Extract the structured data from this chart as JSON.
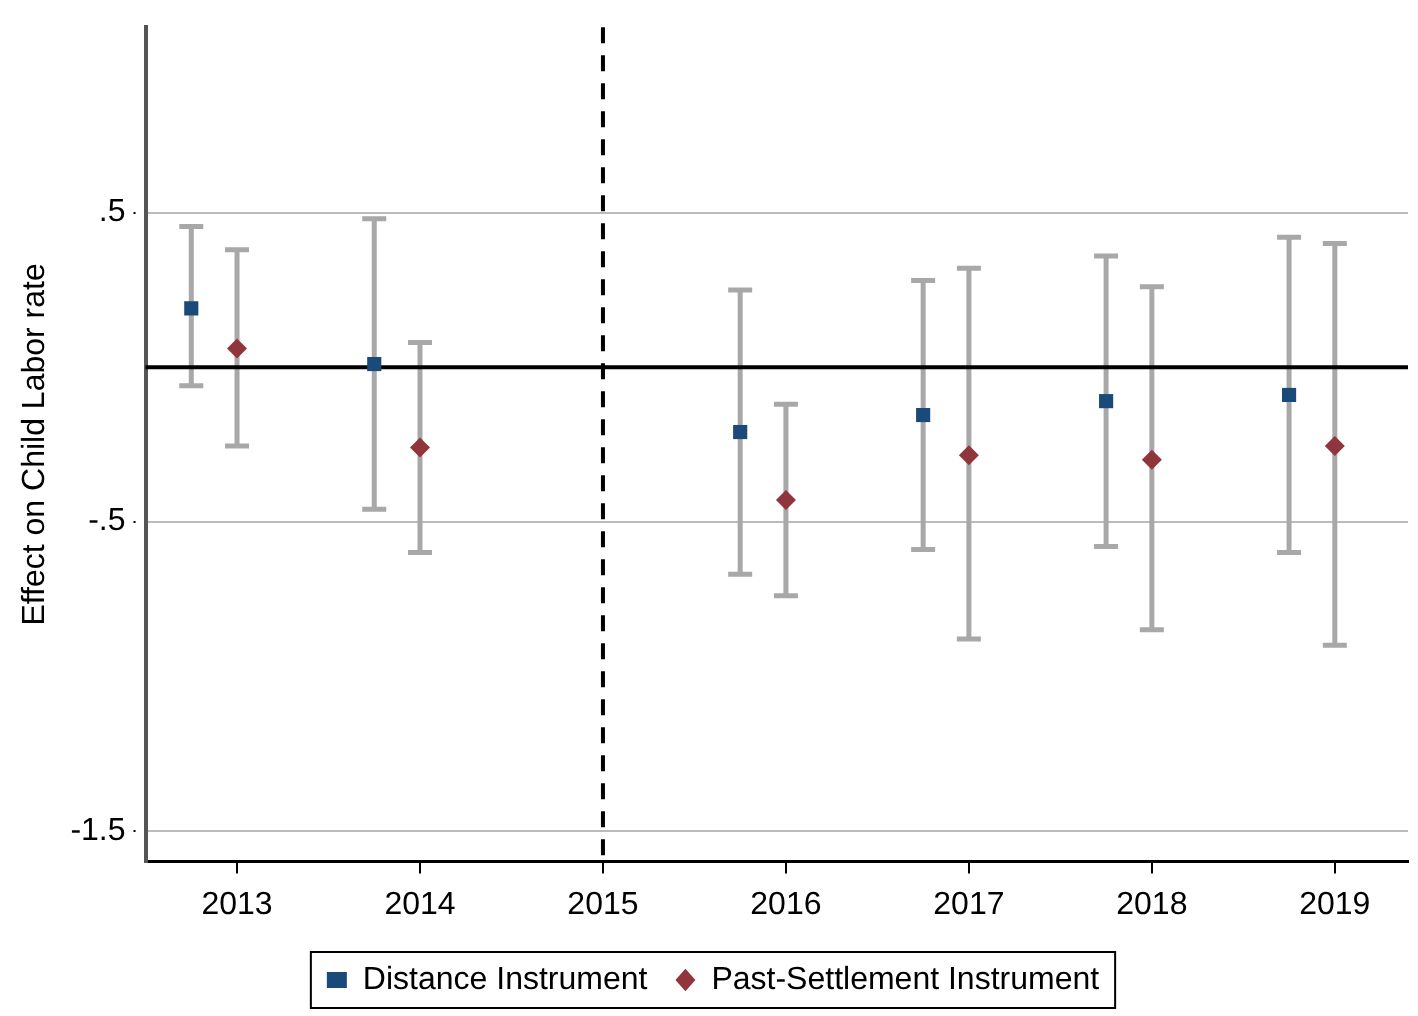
{
  "chart_data": {
    "type": "scatter",
    "ylabel": "Effect on Child Labor rate",
    "xlim": [
      2012.5,
      2019.4
    ],
    "xticks": [
      2013,
      2014,
      2015,
      2016,
      2017,
      2018,
      2019
    ],
    "ylim": [
      -1.6,
      1.1
    ],
    "yticks": [
      {
        "value": 0.5,
        "label": ".5"
      },
      {
        "value": -0.5,
        "label": "-.5"
      },
      {
        "value": -1.5,
        "label": "-1.5"
      }
    ],
    "grid": "y",
    "legend": "bottom",
    "series": [
      {
        "name": "Distance Instrument",
        "color": "#1a4a7a",
        "marker": "square",
        "x": [
          2012.75,
          2013.75,
          2015.75,
          2016.75,
          2017.75,
          2018.75
        ],
        "values": [
          0.19,
          0.01,
          -0.21,
          -0.155,
          -0.11,
          -0.09
        ],
        "errors": [
          [
            -0.06,
            0.455
          ],
          [
            -0.46,
            0.48
          ],
          [
            -0.67,
            0.25
          ],
          [
            -0.59,
            0.28
          ],
          [
            -0.58,
            0.36
          ],
          [
            -0.6,
            0.42
          ]
        ]
      },
      {
        "name": "Past-Settlement Instrument",
        "color": "#90353b",
        "marker": "diamond",
        "x": [
          2013,
          2014,
          2016,
          2017,
          2018,
          2019
        ],
        "values": [
          0.06,
          -0.26,
          -0.43,
          -0.285,
          -0.3,
          -0.255
        ],
        "errors": [
          [
            -0.255,
            0.38
          ],
          [
            -0.6,
            0.08
          ],
          [
            -0.74,
            -0.12
          ],
          [
            -0.88,
            0.32
          ],
          [
            -0.85,
            0.26
          ],
          [
            -0.9,
            0.4
          ]
        ]
      }
    ],
    "ref_lines": [
      {
        "axis": "y",
        "value": 0,
        "color": "#000000",
        "line_style": "solid"
      },
      {
        "axis": "x",
        "value": 2015,
        "color": "#000000",
        "line_style": "dashed"
      }
    ]
  }
}
